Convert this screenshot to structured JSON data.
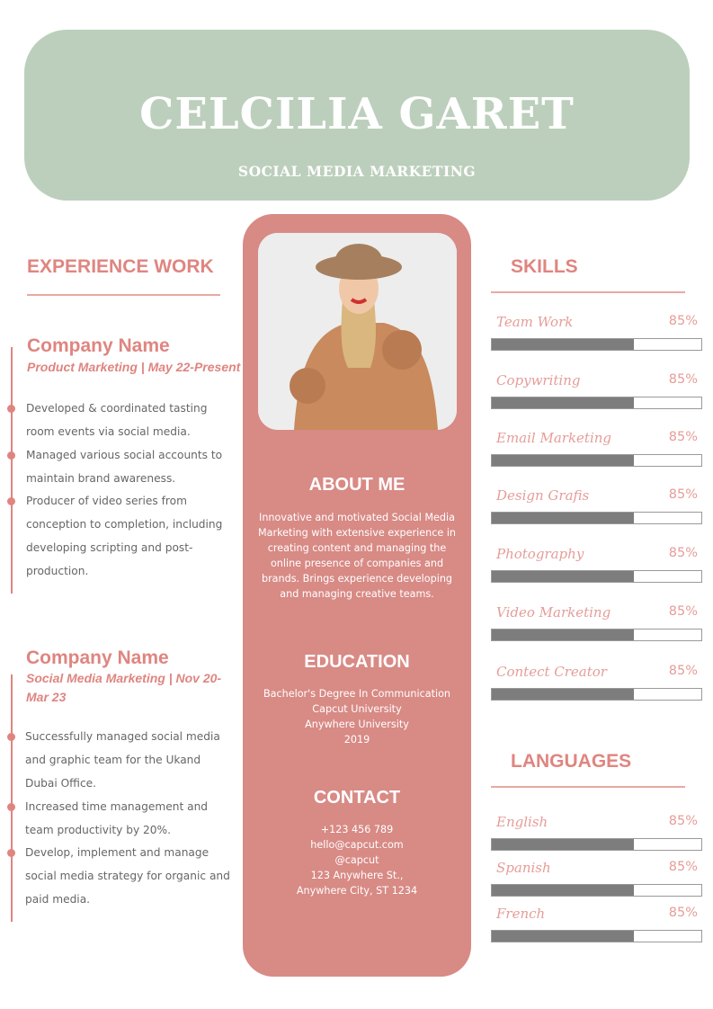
{
  "header": {
    "name": "CELCILIA GARET",
    "role": "SOCIAL MEDIA MARKETING"
  },
  "experience": {
    "title": "EXPERIENCE WORK",
    "jobs": [
      {
        "company": "Company Name",
        "title": "Product Marketing | May 22-Present",
        "bullets": [
          "Developed & coordinated tasting room events via social media.",
          "Managed various social accounts to maintain brand awareness.",
          "Producer of video series from conception to completion, including developing scripting and post-production."
        ]
      },
      {
        "company": "Company Name",
        "title": "Social Media Marketing | Nov 20-Mar 23",
        "bullets": [
          "Successfully managed social media and graphic team for the Ukand Dubai Office.",
          "Increased time management and team productivity by 20%.",
          "Develop, implement and manage social media strategy for organic and  paid media."
        ]
      }
    ]
  },
  "about": {
    "title": "ABOUT ME",
    "text": "Innovative and motivated Social Media Marketing with extensive experience in creating content and managing the online presence of companies and brands. Brings experience developing and managing creative teams."
  },
  "education": {
    "title": "EDUCATION",
    "lines": [
      "Bachelor's Degree In Communication",
      "Capcut University",
      "Anywhere University",
      "2019"
    ]
  },
  "contact": {
    "title": "CONTACT",
    "lines": [
      "+123  456 789",
      "hello@capcut.com",
      "@capcut",
      "123 Anywhere St.,",
      "Anywhere City, ST 1234"
    ]
  },
  "skills": {
    "title": "SKILLS",
    "items": [
      {
        "label": "Team Work",
        "value": "85%",
        "fill": 68
      },
      {
        "label": "Copywriting",
        "value": "85%",
        "fill": 68
      },
      {
        "label": "Email Marketing",
        "value": "85%",
        "fill": 68
      },
      {
        "label": "Design Grafis",
        "value": "85%",
        "fill": 68
      },
      {
        "label": "Photography",
        "value": "85%",
        "fill": 68
      },
      {
        "label": "Video Marketing",
        "value": "85%",
        "fill": 68
      },
      {
        "label": "Contect Creator",
        "value": "85%",
        "fill": 68
      }
    ]
  },
  "languages": {
    "title": "LANGUAGES",
    "items": [
      {
        "label": "English",
        "value": "85%",
        "fill": 68
      },
      {
        "label": "Spanish",
        "value": "85%",
        "fill": 68
      },
      {
        "label": "French",
        "value": "85%",
        "fill": 68
      }
    ]
  },
  "colors": {
    "header": "#bccfbc",
    "accent": "#d88a85",
    "heading": "#df8580",
    "bar": "#7d7d7d"
  }
}
